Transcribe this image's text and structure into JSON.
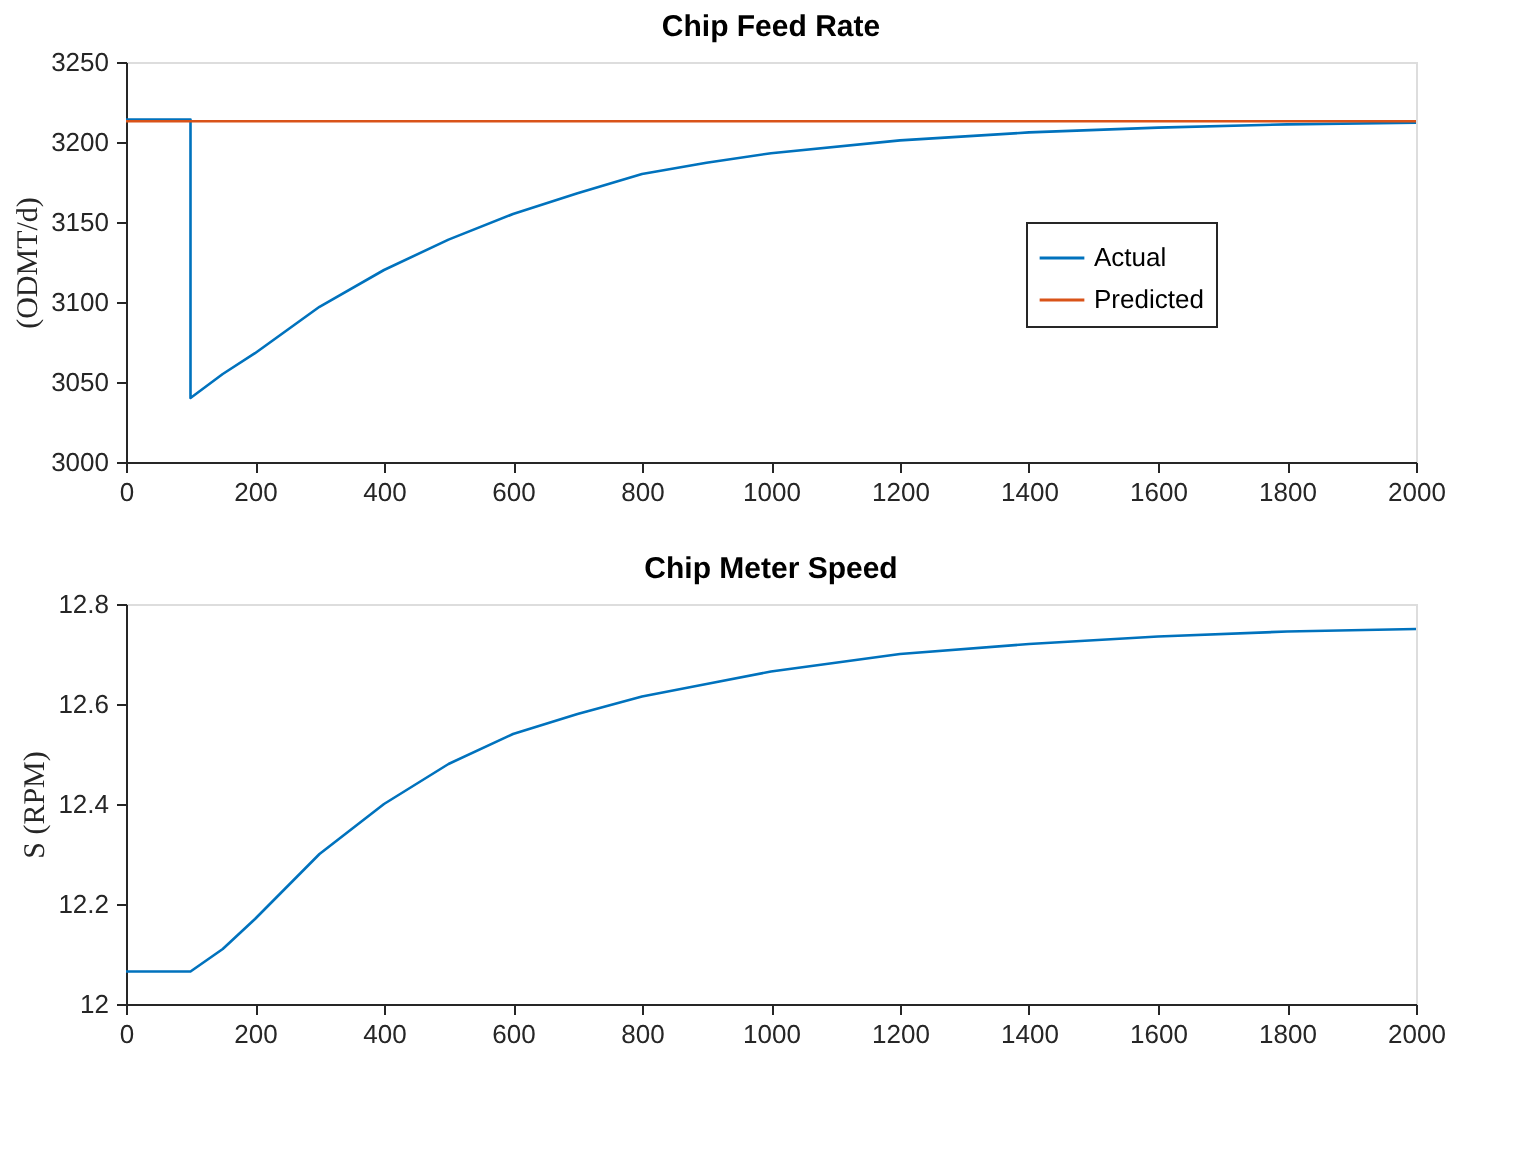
{
  "chart_data": [
    {
      "type": "line",
      "title": "Chip Feed Rate",
      "ylabel": "(ODMT/d)",
      "xlim": [
        0,
        2000
      ],
      "xticks": [
        0,
        200,
        400,
        600,
        800,
        1000,
        1200,
        1400,
        1600,
        1800,
        2000
      ],
      "ylim": [
        3000,
        3250
      ],
      "yticks": [
        3000,
        3050,
        3100,
        3150,
        3200,
        3250
      ],
      "grid": false,
      "legend": "right",
      "series": [
        {
          "name": "Actual",
          "color": "#0072bd",
          "x": [
            0,
            100,
            100,
            150,
            200,
            300,
            400,
            500,
            600,
            700,
            800,
            900,
            1000,
            1200,
            1400,
            1600,
            1800,
            2000
          ],
          "values": [
            3214,
            3214,
            3040,
            3055,
            3068,
            3097,
            3120,
            3139,
            3155,
            3168,
            3180,
            3187,
            3193,
            3201,
            3206,
            3209,
            3211,
            3212
          ]
        },
        {
          "name": "Predicted",
          "color": "#d95319",
          "x": [
            0,
            2000
          ],
          "values": [
            3213,
            3213
          ]
        }
      ]
    },
    {
      "type": "line",
      "title": "Chip Meter Speed",
      "ylabel": "S (RPM)",
      "xlim": [
        0,
        2000
      ],
      "xticks": [
        0,
        200,
        400,
        600,
        800,
        1000,
        1200,
        1400,
        1600,
        1800,
        2000
      ],
      "ylim": [
        12,
        12.8
      ],
      "yticks": [
        12,
        12.2,
        12.4,
        12.6,
        12.8
      ],
      "grid": false,
      "series": [
        {
          "color": "#0072bd",
          "x": [
            0,
            100,
            150,
            200,
            300,
            400,
            500,
            600,
            700,
            800,
            900,
            1000,
            1200,
            1400,
            1600,
            1800,
            2000
          ],
          "values": [
            12.065,
            12.065,
            12.11,
            12.17,
            12.3,
            12.4,
            12.48,
            12.54,
            12.58,
            12.615,
            12.64,
            12.665,
            12.7,
            12.72,
            12.735,
            12.745,
            12.75
          ]
        }
      ]
    }
  ]
}
